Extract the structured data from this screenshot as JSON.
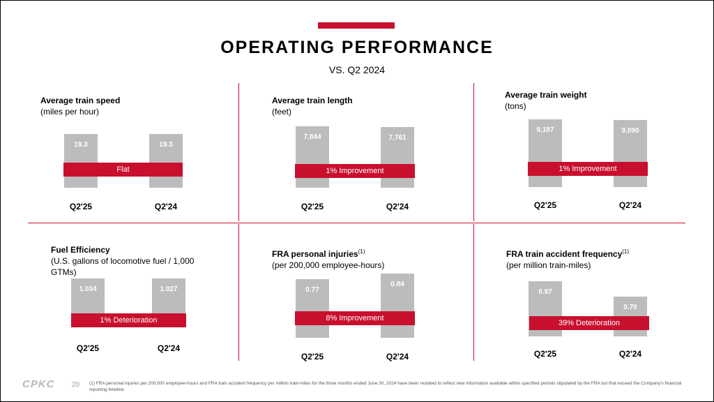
{
  "header": {
    "title": "OPERATING PERFORMANCE",
    "subtitle": "VS. Q2 2024"
  },
  "footer": {
    "logo": "CPKC",
    "page_number": "20",
    "footnote": "(1) FRA personal injuries per 200,000 employee-hours and FRA train accident frequency per million train-miles for the three months ended June 30, 2024 have been restated to reflect new information available within specified periods stipulated by the FRA but that exceed the Company's financial reporting timeline"
  },
  "colors": {
    "accent": "#c8102e",
    "bar": "#bcbcbc"
  },
  "chart_data": [
    {
      "type": "bar",
      "title": "Average train speed",
      "subtitle": "(miles per hour)",
      "footnote_ref": "",
      "categories": [
        "Q2'25",
        "Q2'24"
      ],
      "values": [
        19.3,
        19.3
      ],
      "labels": [
        "19.3",
        "19.3"
      ],
      "change": "Flat"
    },
    {
      "type": "bar",
      "title": "Average train length",
      "subtitle": "(feet)",
      "footnote_ref": "",
      "categories": [
        "Q2'25",
        "Q2'24"
      ],
      "values": [
        7844,
        7761
      ],
      "labels": [
        "7,844",
        "7,761"
      ],
      "change": "1% Improvement"
    },
    {
      "type": "bar",
      "title": "Average train weight",
      "subtitle": "(tons)",
      "footnote_ref": "",
      "categories": [
        "Q2'25",
        "Q2'24"
      ],
      "values": [
        9187,
        9090
      ],
      "labels": [
        "9,187",
        "9,090"
      ],
      "change": "1% Improvement"
    },
    {
      "type": "bar",
      "title": "Fuel Efficiency",
      "subtitle": "(U.S. gallons of locomotive fuel / 1,000",
      "subtitle2": "GTMs)",
      "footnote_ref": "",
      "categories": [
        "Q2'25",
        "Q2'24"
      ],
      "values": [
        1.034,
        1.027
      ],
      "labels": [
        "1.034",
        "1.027"
      ],
      "change": "1% Deterioration"
    },
    {
      "type": "bar",
      "title": "FRA personal injuries",
      "subtitle": "(per 200,000 employee-hours)",
      "footnote_ref": "(1)",
      "categories": [
        "Q2'25",
        "Q2'24"
      ],
      "values": [
        0.77,
        0.84
      ],
      "labels": [
        "0.77",
        "0.84"
      ],
      "change": "8% Improvement"
    },
    {
      "type": "bar",
      "title": "FRA train accident frequency",
      "subtitle": "(per million train-miles)",
      "footnote_ref": "(1)",
      "categories": [
        "Q2'25",
        "Q2'24"
      ],
      "values": [
        0.97,
        0.7
      ],
      "labels": [
        "0.97",
        "0.70"
      ],
      "change": "39% Deterioration"
    }
  ]
}
